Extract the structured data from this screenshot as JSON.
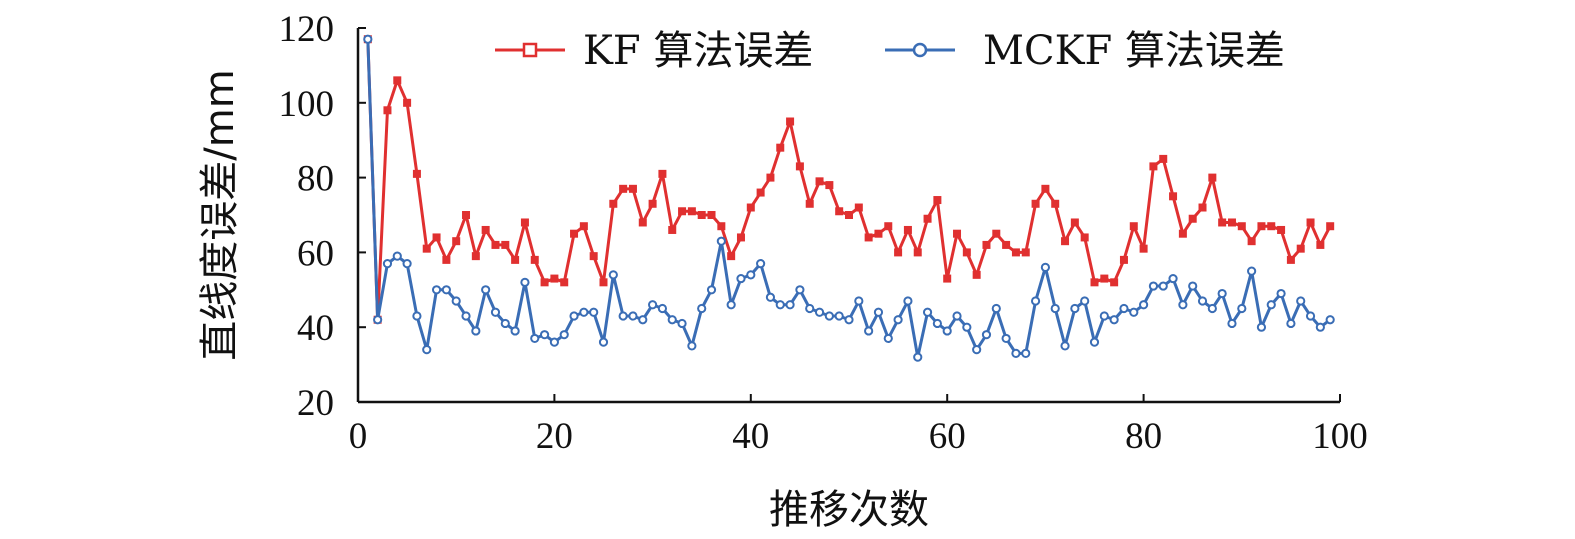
{
  "chart_data": {
    "type": "line",
    "title": "",
    "xlabel": "推移次数",
    "ylabel": "直线度误差/mm",
    "xlim": [
      0,
      100
    ],
    "ylim": [
      20,
      120
    ],
    "xticks": [
      0,
      20,
      40,
      60,
      80,
      100
    ],
    "yticks": [
      20,
      40,
      60,
      80,
      100,
      120
    ],
    "grid": false,
    "legend_position": "top-right",
    "x": [
      1,
      2,
      3,
      4,
      5,
      6,
      7,
      8,
      9,
      10,
      11,
      12,
      13,
      14,
      15,
      16,
      17,
      18,
      19,
      20,
      21,
      22,
      23,
      24,
      25,
      26,
      27,
      28,
      29,
      30,
      31,
      32,
      33,
      34,
      35,
      36,
      37,
      38,
      39,
      40,
      41,
      42,
      43,
      44,
      45,
      46,
      47,
      48,
      49,
      50,
      51,
      52,
      53,
      54,
      55,
      56,
      57,
      58,
      59,
      60,
      61,
      62,
      63,
      64,
      65,
      66,
      67,
      68,
      69,
      70,
      71,
      72,
      73,
      74,
      75,
      76,
      77,
      78,
      79,
      80,
      81,
      82,
      83,
      84,
      85,
      86,
      87,
      88,
      89,
      90,
      91,
      92,
      93,
      94,
      95,
      96,
      97,
      98,
      99
    ],
    "series": [
      {
        "name": "KF 算法误差",
        "color": "#e03030",
        "marker": "square",
        "values": [
          117,
          42,
          98,
          106,
          100,
          81,
          61,
          64,
          58,
          63,
          70,
          59,
          66,
          62,
          62,
          58,
          68,
          58,
          52,
          53,
          52,
          65,
          67,
          59,
          52,
          73,
          77,
          77,
          68,
          73,
          81,
          66,
          71,
          71,
          70,
          70,
          67,
          59,
          64,
          72,
          76,
          80,
          88,
          95,
          83,
          73,
          79,
          78,
          71,
          70,
          72,
          64,
          65,
          67,
          60,
          66,
          60,
          69,
          74,
          53,
          65,
          60,
          54,
          62,
          65,
          62,
          60,
          60,
          73,
          77,
          73,
          63,
          68,
          64,
          52,
          53,
          52,
          58,
          67,
          61,
          83,
          85,
          75,
          65,
          69,
          72,
          80,
          68,
          68,
          67,
          63,
          67,
          67,
          66,
          58,
          61,
          68,
          62,
          67
        ]
      },
      {
        "name": "MCKF 算法误差",
        "color": "#3a6db5",
        "marker": "circle",
        "values": [
          117,
          42,
          57,
          59,
          57,
          43,
          34,
          50,
          50,
          47,
          43,
          39,
          50,
          44,
          41,
          39,
          52,
          37,
          38,
          36,
          38,
          43,
          44,
          44,
          36,
          54,
          43,
          43,
          42,
          46,
          45,
          42,
          41,
          35,
          45,
          50,
          63,
          46,
          53,
          54,
          57,
          48,
          46,
          46,
          50,
          45,
          44,
          43,
          43,
          42,
          47,
          39,
          44,
          37,
          42,
          47,
          32,
          44,
          41,
          39,
          43,
          40,
          34,
          38,
          45,
          37,
          33,
          33,
          47,
          56,
          45,
          35,
          45,
          47,
          36,
          43,
          42,
          45,
          44,
          46,
          51,
          51,
          53,
          46,
          51,
          47,
          45,
          49,
          41,
          45,
          55,
          40,
          46,
          49,
          41,
          47,
          43,
          40,
          42
        ]
      }
    ]
  }
}
